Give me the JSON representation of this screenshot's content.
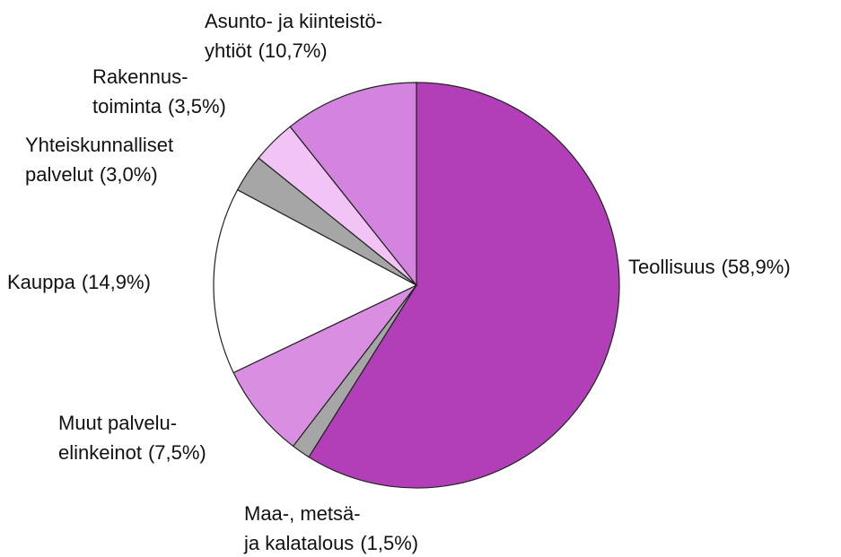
{
  "chart_data": {
    "type": "pie",
    "categories": [
      [
        "Teollisuus"
      ],
      [
        "Maa-, metsä-",
        "ja kalatalous"
      ],
      [
        "Muut palvelu-",
        "elinkeinot"
      ],
      [
        "Kauppa"
      ],
      [
        "Yhteiskunnalliset",
        "palvelut"
      ],
      [
        "Rakennus-",
        "toiminta"
      ],
      [
        "Asunto- ja kiinteistö-",
        "yhtiöt"
      ]
    ],
    "values": [
      58.9,
      1.5,
      7.5,
      14.9,
      3.0,
      3.5,
      10.7
    ],
    "value_labels": [
      "(58,9%)",
      "(1,5%)",
      "(7,5%)",
      "(14,9%)",
      "(3,0%)",
      "(3,5%)",
      "(10,7%)"
    ],
    "colors": [
      "#b23fb8",
      "#a6a6a6",
      "#d98ee2",
      "#ffffff",
      "#a6a6a6",
      "#f2c4f6",
      "#d384de"
    ]
  }
}
